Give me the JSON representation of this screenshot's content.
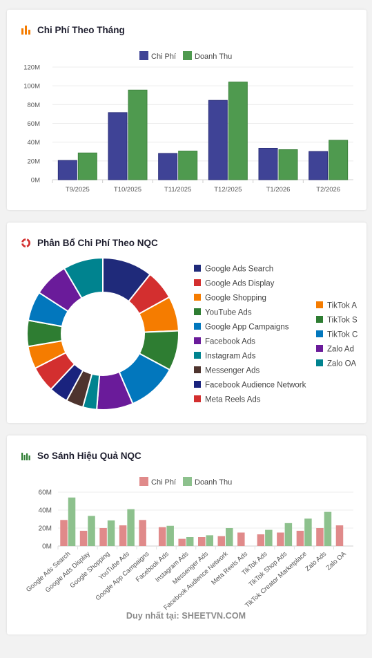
{
  "colors": {
    "chi_phi": "#3f4396",
    "doanh_thu": "#4f9a4f",
    "chi_phi_light": "#e08a8a",
    "doanh_thu_light": "#8dc18d",
    "grid": "#ececec",
    "axis_text": "#555555"
  },
  "card1": {
    "title": "Chi Phí Theo Tháng",
    "icon": "bar-chart-icon",
    "chart_data": {
      "type": "bar",
      "categories": [
        "T9/2025",
        "T10/2025",
        "T11/2025",
        "T12/2025",
        "T1/2026",
        "T2/2026"
      ],
      "series": [
        {
          "name": "Chi Phí",
          "values": [
            20.5,
            71.5,
            28,
            84.5,
            33.5,
            30
          ]
        },
        {
          "name": "Doanh Thu",
          "values": [
            28.5,
            95.5,
            30.5,
            104,
            32,
            42
          ]
        }
      ],
      "y_ticks": [
        "0M",
        "20M",
        "40M",
        "60M",
        "80M",
        "100M",
        "120M"
      ],
      "ylim": [
        0,
        120
      ],
      "legend": "top-center",
      "grid": true
    }
  },
  "card2": {
    "title": "Phân Bổ Chi Phí Theo NQC",
    "icon": "donut-chart-icon",
    "chart_data": {
      "type": "pie",
      "labels": [
        "Google Ads Search",
        "Google Ads Display",
        "Google Shopping",
        "YouTube Ads",
        "Google App Campaigns",
        "Facebook Ads",
        "Instagram Ads",
        "Messenger Ads",
        "Facebook Audience Network",
        "Meta Reels Ads",
        "TikTok Ads",
        "TikTok Shop Ads",
        "TikTok Creator Marketplace",
        "Zalo Ads",
        "Zalo OA"
      ],
      "values": [
        29,
        17,
        20,
        23,
        29,
        21,
        8,
        10,
        11,
        15,
        13,
        15,
        17,
        20,
        23
      ],
      "colors": [
        "#1f2a7a",
        "#d32f2f",
        "#f57c00",
        "#2e7d32",
        "#0277bd",
        "#6a1b9a",
        "#00838f",
        "#4e342e",
        "#1a237e",
        "#d32f2f",
        "#f57c00",
        "#2e7d32",
        "#0277bd",
        "#6a1b9a",
        "#00838f"
      ],
      "legend_visible_text": [
        "Google Ads Search",
        "Google Ads Display",
        "Google Shopping",
        "YouTube Ads",
        "Google App Campaigns",
        "Facebook Ads",
        "Instagram Ads",
        "Messenger Ads",
        "Facebook Audience Network",
        "Meta Reels Ads",
        "TikTok A",
        "TikTok S",
        "TikTok C",
        "Zalo Ad",
        "Zalo OA"
      ],
      "legend": "right"
    }
  },
  "card3": {
    "title": "So Sánh Hiệu Quả NQC",
    "icon": "chart-icon",
    "chart_data": {
      "type": "bar",
      "categories": [
        "Google Ads Search",
        "Google Ads Display",
        "Google Shopping",
        "YouTube Ads",
        "Google App Campaigns",
        "Facebook Ads",
        "Instagram Ads",
        "Messenger Ads",
        "Facebook Audience Network",
        "Meta Reels Ads",
        "TikTok Ads",
        "TikTok Shop Ads",
        "TikTok Creator Marketplace",
        "Zalo Ads",
        "Zalo OA"
      ],
      "series": [
        {
          "name": "Chi Phí",
          "values": [
            29,
            17,
            20,
            23,
            29,
            21,
            8,
            10,
            11,
            15,
            13,
            15,
            17,
            20,
            23
          ]
        },
        {
          "name": "Doanh Thu",
          "values": [
            54,
            33.5,
            28.5,
            41,
            0,
            22.5,
            10,
            12,
            20,
            0,
            18,
            25.5,
            30.5,
            38,
            0
          ]
        }
      ],
      "y_ticks": [
        "0M",
        "20M",
        "40M",
        "60M"
      ],
      "ylim": [
        0,
        60
      ],
      "legend": "top-center",
      "grid": true
    }
  },
  "watermark": "Duy nhất tại: SHEETVN.COM"
}
